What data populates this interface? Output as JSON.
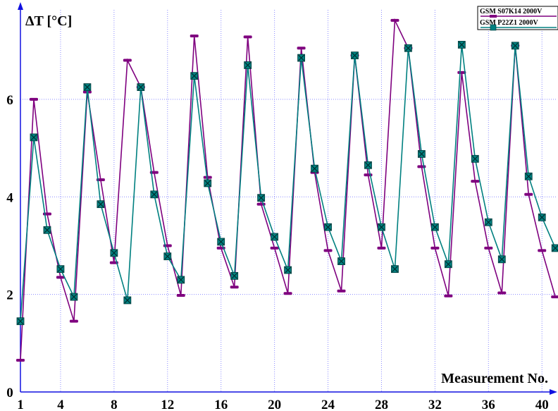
{
  "chart_data": {
    "type": "line",
    "ylabel": "ΔT [°C]",
    "xlabel": "Measurement No.",
    "xlim": [
      1,
      41.2
    ],
    "ylim": [
      0,
      7.95
    ],
    "x_ticks": [
      "1",
      "4",
      "8",
      "12",
      "16",
      "20",
      "24",
      "28",
      "32",
      "36",
      "40"
    ],
    "y_ticks": [
      "0",
      "2",
      "4",
      "6"
    ],
    "grid": true,
    "legend_position": "top-right",
    "x": [
      1,
      2,
      3,
      4,
      5,
      6,
      7,
      8,
      9,
      10,
      11,
      12,
      13,
      14,
      15,
      16,
      17,
      18,
      19,
      20,
      21,
      22,
      23,
      24,
      25,
      26,
      27,
      28,
      29,
      30,
      31,
      32,
      33,
      34,
      35,
      36,
      37,
      38,
      39,
      40,
      41
    ],
    "series": [
      {
        "name": "GSM  S07K14  2000V",
        "color": "#7f007f",
        "marker": "dash",
        "values": [
          0.65,
          6.0,
          3.65,
          2.35,
          1.45,
          6.15,
          4.35,
          2.65,
          6.8,
          6.25,
          4.5,
          3.0,
          1.98,
          7.3,
          4.4,
          2.95,
          2.15,
          7.28,
          3.85,
          2.95,
          2.02,
          7.05,
          4.5,
          2.9,
          2.07,
          6.9,
          4.45,
          2.95,
          7.62,
          7.05,
          4.62,
          2.95,
          1.97,
          6.55,
          4.32,
          2.95,
          2.03,
          7.1,
          4.05,
          2.9,
          1.95
        ]
      },
      {
        "name": "GSM  P22Z1     2000V",
        "color": "#008080",
        "marker": "square-x",
        "values": [
          1.45,
          5.22,
          3.32,
          2.52,
          1.95,
          6.25,
          3.85,
          2.85,
          1.88,
          6.25,
          4.05,
          2.78,
          2.3,
          6.48,
          4.28,
          3.08,
          2.38,
          6.7,
          3.98,
          3.18,
          2.5,
          6.85,
          4.58,
          3.38,
          2.68,
          6.9,
          4.65,
          3.38,
          2.52,
          7.05,
          4.88,
          3.38,
          2.62,
          7.12,
          4.78,
          3.48,
          2.72,
          7.1,
          4.42,
          3.58,
          2.95
        ]
      }
    ]
  }
}
